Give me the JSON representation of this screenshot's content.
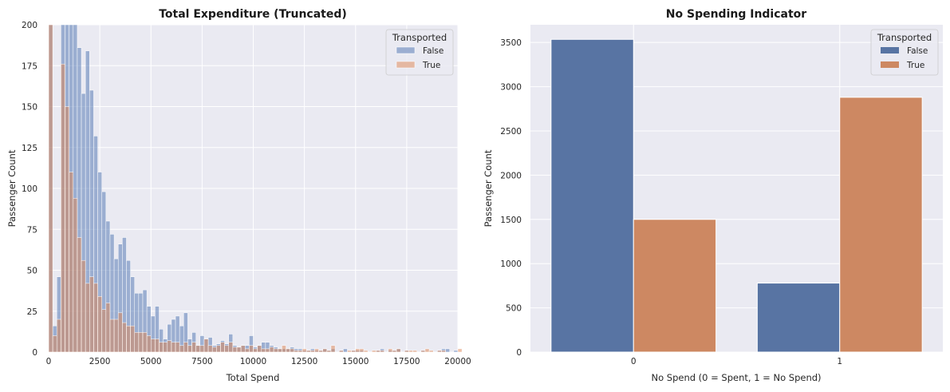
{
  "chart_data": [
    {
      "type": "bar",
      "title": "Total Expenditure (Truncated)",
      "xlabel": "Total Spend",
      "ylabel": "Passenger Count",
      "xlim": [
        0,
        20000
      ],
      "ylim": [
        0,
        200
      ],
      "xticks": [
        "0",
        "2500",
        "5000",
        "7500",
        "10000",
        "12500",
        "15000",
        "17500",
        "20000"
      ],
      "yticks": [
        "0",
        "25",
        "50",
        "75",
        "100",
        "125",
        "150",
        "175",
        "200"
      ],
      "grid": true,
      "legend": {
        "title": "Transported",
        "position": "top-right"
      },
      "bin_start": 0,
      "bin_width": 200,
      "series": [
        {
          "name": "False",
          "color": "#4c72b0",
          "values": [
            200,
            16,
            46,
            200,
            200,
            200,
            200,
            186,
            158,
            184,
            160,
            132,
            110,
            98,
            80,
            72,
            57,
            66,
            70,
            56,
            46,
            36,
            36,
            38,
            28,
            22,
            28,
            14,
            8,
            17,
            20,
            22,
            16,
            24,
            8,
            12,
            4,
            10,
            8,
            9,
            4,
            5,
            7,
            5,
            11,
            4,
            3,
            4,
            4,
            10,
            3,
            4,
            6,
            6,
            4,
            3,
            2,
            2,
            2,
            3,
            2,
            2,
            1,
            1,
            2,
            1,
            1,
            2,
            1,
            2,
            0,
            1,
            2,
            0,
            1,
            1,
            1,
            0,
            0,
            0,
            1,
            2,
            0,
            1,
            1,
            2,
            0,
            1,
            0,
            0,
            0,
            1,
            0,
            0,
            0,
            1,
            2,
            2,
            0,
            1,
            0
          ]
        },
        {
          "name": "True",
          "color": "#dd8452",
          "values": [
            200,
            10,
            20,
            176,
            150,
            110,
            94,
            70,
            56,
            42,
            46,
            42,
            34,
            26,
            30,
            20,
            20,
            24,
            18,
            16,
            16,
            12,
            12,
            12,
            10,
            8,
            8,
            6,
            6,
            7,
            6,
            6,
            4,
            6,
            4,
            6,
            4,
            4,
            8,
            4,
            3,
            4,
            6,
            4,
            6,
            3,
            3,
            4,
            2,
            4,
            2,
            4,
            2,
            2,
            3,
            2,
            2,
            4,
            2,
            2,
            1,
            1,
            2,
            1,
            1,
            2,
            1,
            2,
            1,
            4,
            0,
            1,
            0,
            1,
            1,
            2,
            2,
            1,
            0,
            1,
            1,
            1,
            0,
            2,
            1,
            2,
            0,
            1,
            1,
            1,
            0,
            1,
            2,
            1,
            0,
            1,
            1,
            0,
            0,
            0,
            2
          ]
        }
      ]
    },
    {
      "type": "bar",
      "title": "No Spending Indicator",
      "xlabel": "No Spend (0 = Spent, 1 = No Spend)",
      "ylabel": "Passenger Count",
      "categories": [
        "0",
        "1"
      ],
      "ylim": [
        0,
        3700
      ],
      "yticks": [
        "0",
        "500",
        "1000",
        "1500",
        "2000",
        "2500",
        "3000",
        "3500"
      ],
      "grid": true,
      "legend": {
        "title": "Transported",
        "position": "top-right"
      },
      "series": [
        {
          "name": "False",
          "color": "#5874a3",
          "values": [
            3535,
            780
          ]
        },
        {
          "name": "True",
          "color": "#cd8862",
          "values": [
            1500,
            2880
          ]
        }
      ]
    }
  ]
}
